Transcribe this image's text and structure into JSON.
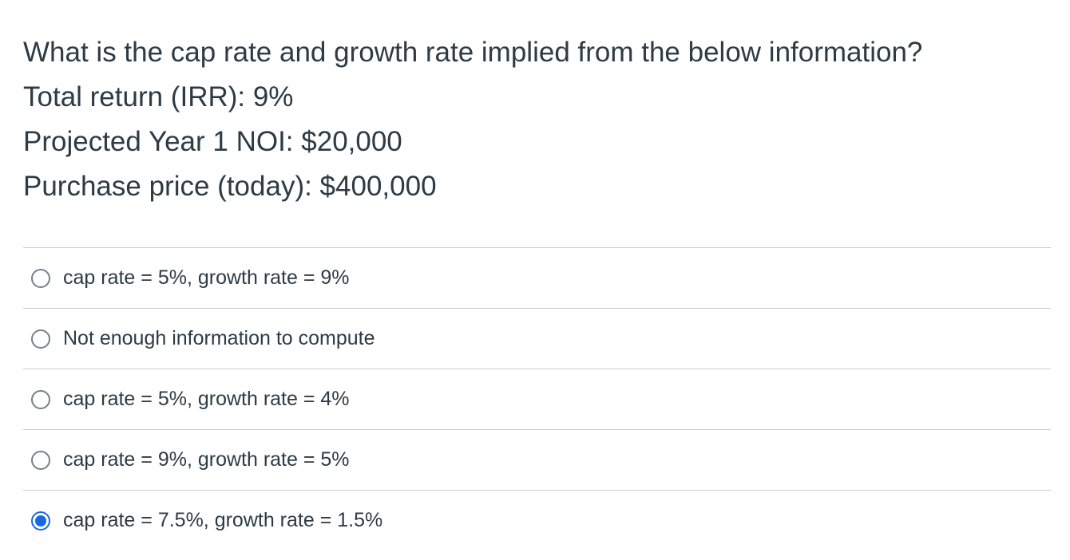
{
  "question": {
    "lines": [
      "What is the cap rate and growth rate implied from the below information?",
      "Total return (IRR): 9%",
      "Projected Year 1 NOI: $20,000",
      "Purchase price (today): $400,000"
    ]
  },
  "answers": [
    {
      "label": "cap rate = 5%, growth rate = 9%",
      "selected": false
    },
    {
      "label": "Not enough information to compute",
      "selected": false
    },
    {
      "label": "cap rate = 5%, growth rate = 4%",
      "selected": false
    },
    {
      "label": "cap rate = 9%, growth rate = 5%",
      "selected": false
    },
    {
      "label": "cap rate = 7.5%, growth rate = 1.5%",
      "selected": true
    }
  ],
  "colors": {
    "text": "#2d3b45",
    "divider": "#c7cdd1",
    "radio_border": "#73818a",
    "radio_selected": "#1769e0"
  }
}
